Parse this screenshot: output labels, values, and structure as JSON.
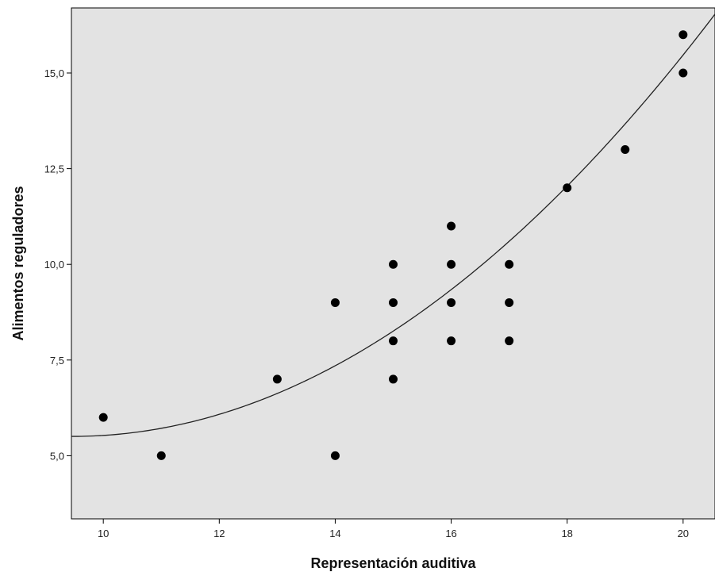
{
  "chart_data": {
    "type": "scatter",
    "title": "",
    "xlabel": "Representación auditiva",
    "ylabel": "Alimentos reguladores",
    "xlim": [
      9.45,
      20.55
    ],
    "ylim": [
      3.35,
      16.7
    ],
    "xticks": [
      {
        "value": 10,
        "label": "10"
      },
      {
        "value": 12,
        "label": "12"
      },
      {
        "value": 14,
        "label": "14"
      },
      {
        "value": 16,
        "label": "16"
      },
      {
        "value": 18,
        "label": "18"
      },
      {
        "value": 20,
        "label": "20"
      }
    ],
    "yticks": [
      {
        "value": 5.0,
        "label": "5,0"
      },
      {
        "value": 7.5,
        "label": "7,5"
      },
      {
        "value": 10.0,
        "label": "10,0"
      },
      {
        "value": 12.5,
        "label": "12,5"
      },
      {
        "value": 15.0,
        "label": "15,0"
      }
    ],
    "points": [
      {
        "x": 10,
        "y": 6
      },
      {
        "x": 11,
        "y": 5
      },
      {
        "x": 13,
        "y": 7
      },
      {
        "x": 14,
        "y": 9
      },
      {
        "x": 14,
        "y": 5
      },
      {
        "x": 15,
        "y": 10
      },
      {
        "x": 15,
        "y": 9
      },
      {
        "x": 15,
        "y": 8
      },
      {
        "x": 15,
        "y": 7
      },
      {
        "x": 16,
        "y": 11
      },
      {
        "x": 16,
        "y": 10
      },
      {
        "x": 16,
        "y": 9
      },
      {
        "x": 16,
        "y": 8
      },
      {
        "x": 17,
        "y": 10
      },
      {
        "x": 17,
        "y": 9
      },
      {
        "x": 17,
        "y": 8
      },
      {
        "x": 18,
        "y": 12
      },
      {
        "x": 19,
        "y": 13
      },
      {
        "x": 20,
        "y": 16
      },
      {
        "x": 20,
        "y": 15
      }
    ],
    "fit_line": {
      "type": "quadratic",
      "coefficients": {
        "a": 0.0898,
        "b": -1.7,
        "c": 13.55
      }
    },
    "grid": false,
    "colors": {
      "plot_background": "#e3e3e3",
      "points": "#000000",
      "fit_line": "#222222",
      "frame": "#000000"
    }
  }
}
